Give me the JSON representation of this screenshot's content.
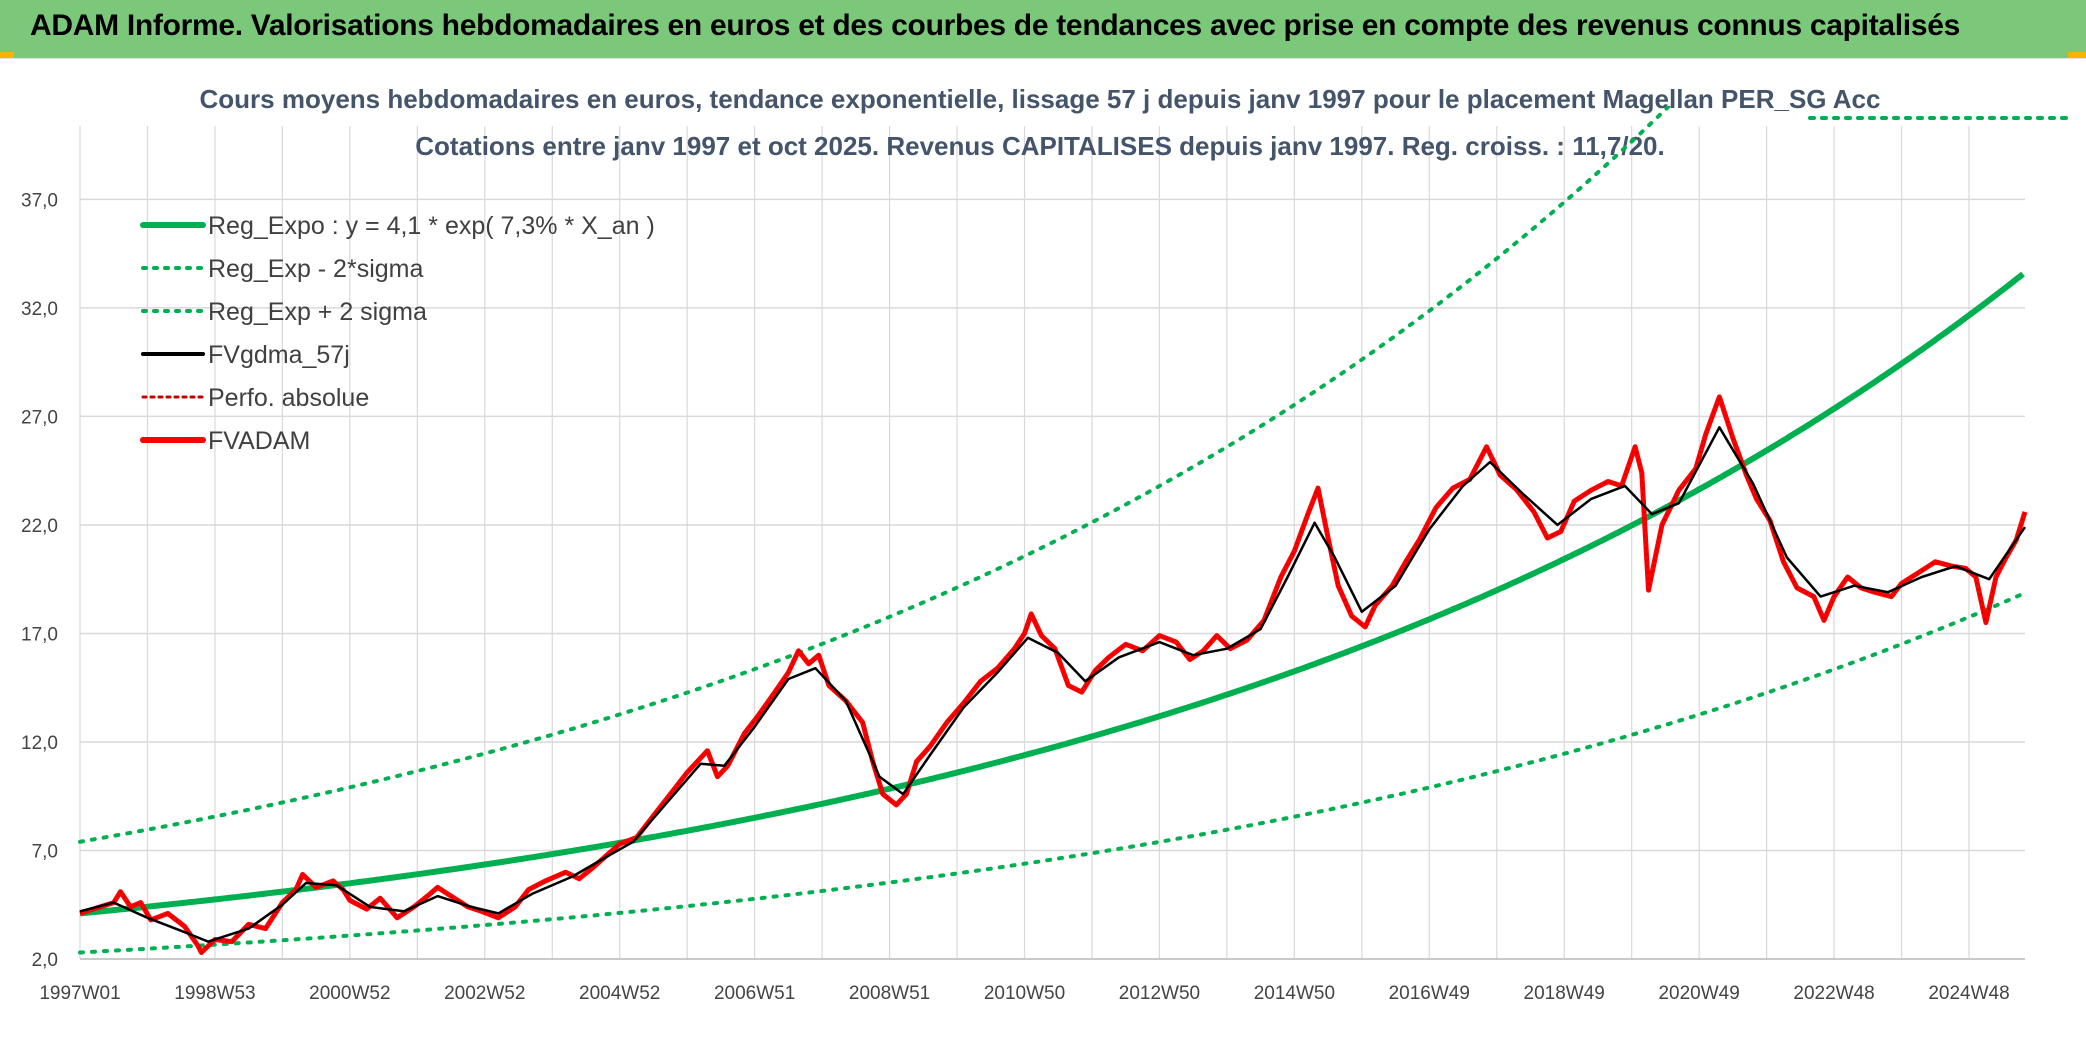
{
  "header": {
    "title": "ADAM Informe. Valorisations hebdomadaires en euros et des courbes de tendances avec prise en compte des revenus connus capitalisés"
  },
  "colors": {
    "header_bg": "#7cc87a",
    "trend": "#00b050",
    "smoothed": "#000000",
    "fvadam": "#ff0000",
    "perfo": "#c00000",
    "grid": "#d9d9d9",
    "title": "#44546a"
  },
  "chart_data": {
    "type": "line",
    "title_line1": "Cours moyens hebdomadaires en euros, tendance exponentielle, lissage 57 j depuis janv 1997 pour le placement Magellan PER_SG Acc",
    "title_line2": "Cotations entre janv 1997 et oct 2025. Revenus CAPITALISES depuis janv 1997. Reg. croiss. : 11,7/20.",
    "xlabel": "",
    "ylabel": "",
    "x_range_years": [
      1997.0,
      2025.83
    ],
    "ylim": [
      2.0,
      39.0
    ],
    "y_ticks": [
      "2,0",
      "7,0",
      "12,0",
      "17,0",
      "22,0",
      "27,0",
      "32,0",
      "37,0"
    ],
    "y_tick_values": [
      2,
      7,
      12,
      17,
      22,
      27,
      32,
      37
    ],
    "x_tick_labels": [
      "1997W01",
      "1998W53",
      "2000W52",
      "2002W52",
      "2004W52",
      "2006W51",
      "2008W51",
      "2010W50",
      "2012W50",
      "2014W50",
      "2016W49",
      "2018W49",
      "2020W49",
      "2022W48",
      "2024W48"
    ],
    "x_tick_years": [
      1997.0,
      1999.0,
      2001.0,
      2003.0,
      2005.0,
      2007.0,
      2009.0,
      2011.0,
      2013.0,
      2015.0,
      2017.0,
      2019.0,
      2021.0,
      2023.0,
      2025.0
    ],
    "trend": {
      "a": 4.1,
      "rate": 0.073
    },
    "sigma_band": {
      "lower_start": 2.3,
      "upper_start": 7.4
    },
    "legend": [
      {
        "label": "Reg_Expo : y = 4,1 * exp( 7,3% *  X_an )",
        "style": "solid-green-thick"
      },
      {
        "label": "Reg_Exp - 2*sigma",
        "style": "dotted-green"
      },
      {
        "label": "Reg_Exp + 2 sigma",
        "style": "dotted-green"
      },
      {
        "label": "FVgdma_57j",
        "style": "solid-black"
      },
      {
        "label": "Perfo. absolue",
        "style": "dotted-red"
      },
      {
        "label": "FVADAM",
        "style": "solid-red-thick"
      }
    ],
    "series": [
      {
        "name": "FVADAM",
        "points": [
          [
            1997.0,
            4.1
          ],
          [
            1997.3,
            4.4
          ],
          [
            1997.5,
            4.6
          ],
          [
            1997.6,
            5.1
          ],
          [
            1997.75,
            4.4
          ],
          [
            1997.9,
            4.6
          ],
          [
            1998.05,
            3.8
          ],
          [
            1998.3,
            4.1
          ],
          [
            1998.55,
            3.5
          ],
          [
            1998.75,
            2.6
          ],
          [
            1998.8,
            2.3
          ],
          [
            1999.0,
            2.9
          ],
          [
            1999.25,
            2.8
          ],
          [
            1999.5,
            3.6
          ],
          [
            1999.75,
            3.4
          ],
          [
            2000.0,
            4.6
          ],
          [
            2000.2,
            5.2
          ],
          [
            2000.3,
            5.9
          ],
          [
            2000.5,
            5.3
          ],
          [
            2000.75,
            5.6
          ],
          [
            2000.9,
            5.2
          ],
          [
            2001.0,
            4.7
          ],
          [
            2001.25,
            4.3
          ],
          [
            2001.45,
            4.8
          ],
          [
            2001.7,
            3.9
          ],
          [
            2001.95,
            4.4
          ],
          [
            2002.15,
            4.9
          ],
          [
            2002.3,
            5.3
          ],
          [
            2002.5,
            4.9
          ],
          [
            2002.75,
            4.4
          ],
          [
            2002.95,
            4.2
          ],
          [
            2003.2,
            3.9
          ],
          [
            2003.45,
            4.4
          ],
          [
            2003.65,
            5.2
          ],
          [
            2003.9,
            5.6
          ],
          [
            2004.2,
            6.0
          ],
          [
            2004.4,
            5.7
          ],
          [
            2004.6,
            6.2
          ],
          [
            2004.85,
            6.9
          ],
          [
            2005.0,
            7.3
          ],
          [
            2005.25,
            7.6
          ],
          [
            2005.5,
            8.6
          ],
          [
            2005.75,
            9.6
          ],
          [
            2006.0,
            10.6
          ],
          [
            2006.3,
            11.6
          ],
          [
            2006.45,
            10.4
          ],
          [
            2006.6,
            10.9
          ],
          [
            2006.85,
            12.4
          ],
          [
            2007.05,
            13.2
          ],
          [
            2007.3,
            14.3
          ],
          [
            2007.5,
            15.2
          ],
          [
            2007.65,
            16.2
          ],
          [
            2007.8,
            15.6
          ],
          [
            2007.95,
            16.0
          ],
          [
            2008.1,
            14.6
          ],
          [
            2008.35,
            13.9
          ],
          [
            2008.6,
            12.9
          ],
          [
            2008.75,
            11.1
          ],
          [
            2008.9,
            9.6
          ],
          [
            2009.1,
            9.1
          ],
          [
            2009.25,
            9.6
          ],
          [
            2009.4,
            11.1
          ],
          [
            2009.6,
            11.8
          ],
          [
            2009.85,
            12.9
          ],
          [
            2010.1,
            13.8
          ],
          [
            2010.35,
            14.8
          ],
          [
            2010.6,
            15.4
          ],
          [
            2010.85,
            16.3
          ],
          [
            2011.0,
            17.0
          ],
          [
            2011.1,
            17.9
          ],
          [
            2011.25,
            16.9
          ],
          [
            2011.45,
            16.3
          ],
          [
            2011.65,
            14.6
          ],
          [
            2011.85,
            14.3
          ],
          [
            2012.05,
            15.3
          ],
          [
            2012.25,
            15.9
          ],
          [
            2012.5,
            16.5
          ],
          [
            2012.75,
            16.2
          ],
          [
            2013.0,
            16.9
          ],
          [
            2013.25,
            16.6
          ],
          [
            2013.45,
            15.8
          ],
          [
            2013.65,
            16.2
          ],
          [
            2013.85,
            16.9
          ],
          [
            2014.05,
            16.3
          ],
          [
            2014.3,
            16.7
          ],
          [
            2014.55,
            17.6
          ],
          [
            2014.8,
            19.6
          ],
          [
            2015.0,
            20.8
          ],
          [
            2015.2,
            22.5
          ],
          [
            2015.35,
            23.7
          ],
          [
            2015.5,
            21.4
          ],
          [
            2015.65,
            19.2
          ],
          [
            2015.85,
            17.8
          ],
          [
            2016.05,
            17.3
          ],
          [
            2016.2,
            18.3
          ],
          [
            2016.45,
            19.2
          ],
          [
            2016.65,
            20.3
          ],
          [
            2016.85,
            21.3
          ],
          [
            2017.1,
            22.8
          ],
          [
            2017.35,
            23.7
          ],
          [
            2017.6,
            24.1
          ],
          [
            2017.85,
            25.6
          ],
          [
            2018.05,
            24.3
          ],
          [
            2018.3,
            23.6
          ],
          [
            2018.55,
            22.6
          ],
          [
            2018.75,
            21.4
          ],
          [
            2018.95,
            21.7
          ],
          [
            2019.15,
            23.1
          ],
          [
            2019.4,
            23.6
          ],
          [
            2019.65,
            24.0
          ],
          [
            2019.85,
            23.8
          ],
          [
            2020.05,
            25.6
          ],
          [
            2020.15,
            24.4
          ],
          [
            2020.25,
            19.0
          ],
          [
            2020.45,
            22.0
          ],
          [
            2020.7,
            23.6
          ],
          [
            2020.95,
            24.6
          ],
          [
            2021.1,
            26.2
          ],
          [
            2021.3,
            27.9
          ],
          [
            2021.5,
            26.0
          ],
          [
            2021.7,
            24.3
          ],
          [
            2021.85,
            23.2
          ],
          [
            2022.05,
            22.2
          ],
          [
            2022.25,
            20.3
          ],
          [
            2022.45,
            19.1
          ],
          [
            2022.7,
            18.7
          ],
          [
            2022.85,
            17.6
          ],
          [
            2023.0,
            18.7
          ],
          [
            2023.2,
            19.6
          ],
          [
            2023.4,
            19.1
          ],
          [
            2023.6,
            18.9
          ],
          [
            2023.85,
            18.7
          ],
          [
            2024.0,
            19.3
          ],
          [
            2024.25,
            19.8
          ],
          [
            2024.5,
            20.3
          ],
          [
            2024.75,
            20.1
          ],
          [
            2024.95,
            20.0
          ],
          [
            2025.1,
            19.6
          ],
          [
            2025.25,
            17.5
          ],
          [
            2025.4,
            19.6
          ],
          [
            2025.55,
            20.5
          ],
          [
            2025.7,
            21.3
          ],
          [
            2025.83,
            22.6
          ]
        ]
      },
      {
        "name": "FVgdma_57j",
        "points": [
          [
            1997.0,
            4.2
          ],
          [
            1997.5,
            4.6
          ],
          [
            1998.0,
            3.9
          ],
          [
            1998.5,
            3.3
          ],
          [
            1998.9,
            2.8
          ],
          [
            1999.5,
            3.4
          ],
          [
            2000.0,
            4.5
          ],
          [
            2000.35,
            5.5
          ],
          [
            2000.8,
            5.4
          ],
          [
            2001.3,
            4.4
          ],
          [
            2001.8,
            4.2
          ],
          [
            2002.3,
            4.9
          ],
          [
            2002.8,
            4.4
          ],
          [
            2003.2,
            4.1
          ],
          [
            2003.7,
            5.0
          ],
          [
            2004.3,
            5.8
          ],
          [
            2004.8,
            6.7
          ],
          [
            2005.2,
            7.4
          ],
          [
            2005.7,
            9.2
          ],
          [
            2006.2,
            11.0
          ],
          [
            2006.55,
            10.9
          ],
          [
            2007.0,
            12.7
          ],
          [
            2007.5,
            14.9
          ],
          [
            2007.9,
            15.4
          ],
          [
            2008.35,
            13.9
          ],
          [
            2008.85,
            10.4
          ],
          [
            2009.2,
            9.6
          ],
          [
            2009.6,
            11.4
          ],
          [
            2010.1,
            13.6
          ],
          [
            2010.6,
            15.2
          ],
          [
            2011.05,
            16.8
          ],
          [
            2011.5,
            16.1
          ],
          [
            2011.9,
            14.8
          ],
          [
            2012.4,
            15.9
          ],
          [
            2013.0,
            16.6
          ],
          [
            2013.5,
            16.0
          ],
          [
            2014.0,
            16.3
          ],
          [
            2014.5,
            17.2
          ],
          [
            2014.9,
            19.6
          ],
          [
            2015.3,
            22.1
          ],
          [
            2015.6,
            20.5
          ],
          [
            2016.0,
            18.0
          ],
          [
            2016.5,
            19.2
          ],
          [
            2017.0,
            21.8
          ],
          [
            2017.5,
            23.8
          ],
          [
            2017.9,
            24.9
          ],
          [
            2018.4,
            23.4
          ],
          [
            2018.9,
            22.0
          ],
          [
            2019.4,
            23.2
          ],
          [
            2019.9,
            23.8
          ],
          [
            2020.3,
            22.5
          ],
          [
            2020.7,
            23.0
          ],
          [
            2021.3,
            26.5
          ],
          [
            2021.8,
            23.9
          ],
          [
            2022.3,
            20.5
          ],
          [
            2022.8,
            18.7
          ],
          [
            2023.3,
            19.2
          ],
          [
            2023.8,
            18.9
          ],
          [
            2024.3,
            19.6
          ],
          [
            2024.8,
            20.1
          ],
          [
            2025.3,
            19.5
          ],
          [
            2025.83,
            21.9
          ]
        ]
      }
    ]
  }
}
